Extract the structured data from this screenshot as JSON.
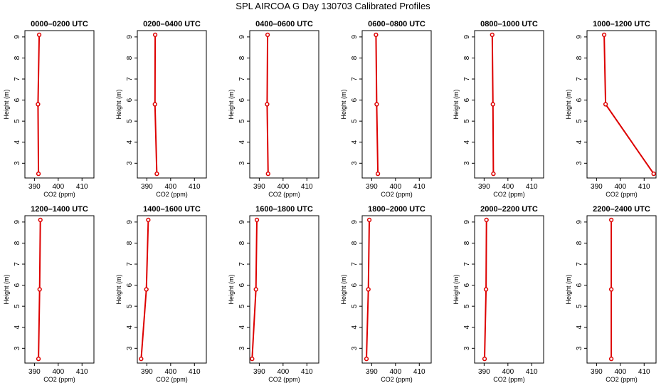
{
  "title": "SPL AIRCOA G  Day 130703  Calibrated Profiles",
  "series_color": "#dd0000",
  "chart_data": [
    {
      "type": "line",
      "title": "0000–0200 UTC",
      "xlabel": "CO2 (ppm)",
      "ylabel": "Height (m)",
      "xlim": [
        386,
        415
      ],
      "ylim": [
        2.3,
        9.3
      ],
      "xticks": [
        390,
        400,
        410
      ],
      "yticks": [
        3,
        4,
        5,
        6,
        7,
        8,
        9
      ],
      "x": [
        391.7,
        391.5,
        392.0
      ],
      "y": [
        2.5,
        5.8,
        9.1
      ],
      "grid": false
    },
    {
      "type": "line",
      "title": "0200–0400 UTC",
      "xlabel": "CO2 (ppm)",
      "ylabel": "Height (m)",
      "xlim": [
        386,
        415
      ],
      "ylim": [
        2.3,
        9.3
      ],
      "xticks": [
        390,
        400,
        410
      ],
      "yticks": [
        3,
        4,
        5,
        6,
        7,
        8,
        9
      ],
      "x": [
        394.2,
        393.4,
        393.5
      ],
      "y": [
        2.5,
        5.8,
        9.1
      ],
      "grid": false
    },
    {
      "type": "line",
      "title": "0400–0600 UTC",
      "xlabel": "CO2 (ppm)",
      "ylabel": "Height (m)",
      "xlim": [
        386,
        415
      ],
      "ylim": [
        2.3,
        9.3
      ],
      "xticks": [
        390,
        400,
        410
      ],
      "yticks": [
        3,
        4,
        5,
        6,
        7,
        8,
        9
      ],
      "x": [
        393.7,
        393.3,
        393.5
      ],
      "y": [
        2.5,
        5.8,
        9.1
      ],
      "grid": false
    },
    {
      "type": "line",
      "title": "0600–0800 UTC",
      "xlabel": "CO2 (ppm)",
      "ylabel": "Height (m)",
      "xlim": [
        386,
        415
      ],
      "ylim": [
        2.3,
        9.3
      ],
      "xticks": [
        390,
        400,
        410
      ],
      "yticks": [
        3,
        4,
        5,
        6,
        7,
        8,
        9
      ],
      "x": [
        392.6,
        392.1,
        391.8
      ],
      "y": [
        2.5,
        5.8,
        9.1
      ],
      "grid": false
    },
    {
      "type": "line",
      "title": "0800–1000 UTC",
      "xlabel": "CO2 (ppm)",
      "ylabel": "Height (m)",
      "xlim": [
        386,
        415
      ],
      "ylim": [
        2.3,
        9.3
      ],
      "xticks": [
        390,
        400,
        410
      ],
      "yticks": [
        3,
        4,
        5,
        6,
        7,
        8,
        9
      ],
      "x": [
        393.9,
        393.7,
        393.4
      ],
      "y": [
        2.5,
        5.8,
        9.1
      ],
      "grid": false
    },
    {
      "type": "line",
      "title": "1000–1200 UTC",
      "xlabel": "CO2 (ppm)",
      "ylabel": "Height (m)",
      "xlim": [
        386,
        415
      ],
      "ylim": [
        2.3,
        9.3
      ],
      "xticks": [
        390,
        400,
        410
      ],
      "yticks": [
        3,
        4,
        5,
        6,
        7,
        8,
        9
      ],
      "x": [
        414.0,
        393.8,
        393.2
      ],
      "y": [
        2.5,
        5.8,
        9.1
      ],
      "grid": false
    },
    {
      "type": "line",
      "title": "1200–1400 UTC",
      "xlabel": "CO2 (ppm)",
      "ylabel": "Height (m)",
      "xlim": [
        386,
        415
      ],
      "ylim": [
        2.3,
        9.3
      ],
      "xticks": [
        390,
        400,
        410
      ],
      "yticks": [
        3,
        4,
        5,
        6,
        7,
        8,
        9
      ],
      "x": [
        391.7,
        392.2,
        392.5
      ],
      "y": [
        2.5,
        5.8,
        9.1
      ],
      "grid": false
    },
    {
      "type": "line",
      "title": "1400–1600 UTC",
      "xlabel": "CO2 (ppm)",
      "ylabel": "Height (m)",
      "xlim": [
        386,
        415
      ],
      "ylim": [
        2.3,
        9.3
      ],
      "xticks": [
        390,
        400,
        410
      ],
      "yticks": [
        3,
        4,
        5,
        6,
        7,
        8,
        9
      ],
      "x": [
        387.6,
        389.8,
        390.6
      ],
      "y": [
        2.5,
        5.8,
        9.1
      ],
      "grid": false
    },
    {
      "type": "line",
      "title": "1600–1800 UTC",
      "xlabel": "CO2 (ppm)",
      "ylabel": "Height (m)",
      "xlim": [
        386,
        415
      ],
      "ylim": [
        2.3,
        9.3
      ],
      "xticks": [
        390,
        400,
        410
      ],
      "yticks": [
        3,
        4,
        5,
        6,
        7,
        8,
        9
      ],
      "x": [
        387.0,
        388.6,
        389.0
      ],
      "y": [
        2.5,
        5.8,
        9.1
      ],
      "grid": false
    },
    {
      "type": "line",
      "title": "1800–2000 UTC",
      "xlabel": "CO2 (ppm)",
      "ylabel": "Height (m)",
      "xlim": [
        386,
        415
      ],
      "ylim": [
        2.3,
        9.3
      ],
      "xticks": [
        390,
        400,
        410
      ],
      "yticks": [
        3,
        4,
        5,
        6,
        7,
        8,
        9
      ],
      "x": [
        387.8,
        388.6,
        389.0
      ],
      "y": [
        2.5,
        5.8,
        9.1
      ],
      "grid": false
    },
    {
      "type": "line",
      "title": "2000–2200 UTC",
      "xlabel": "CO2 (ppm)",
      "ylabel": "Height (m)",
      "xlim": [
        386,
        415
      ],
      "ylim": [
        2.3,
        9.3
      ],
      "xticks": [
        390,
        400,
        410
      ],
      "yticks": [
        3,
        4,
        5,
        6,
        7,
        8,
        9
      ],
      "x": [
        390.2,
        390.8,
        391.0
      ],
      "y": [
        2.5,
        5.8,
        9.1
      ],
      "grid": false
    },
    {
      "type": "line",
      "title": "2200–2400 UTC",
      "xlabel": "CO2 (ppm)",
      "ylabel": "Height (m)",
      "xlim": [
        386,
        415
      ],
      "ylim": [
        2.3,
        9.3
      ],
      "xticks": [
        390,
        400,
        410
      ],
      "yticks": [
        3,
        4,
        5,
        6,
        7,
        8,
        9
      ],
      "x": [
        396.2,
        396.2,
        396.2
      ],
      "y": [
        2.5,
        5.8,
        9.1
      ],
      "grid": false
    }
  ]
}
